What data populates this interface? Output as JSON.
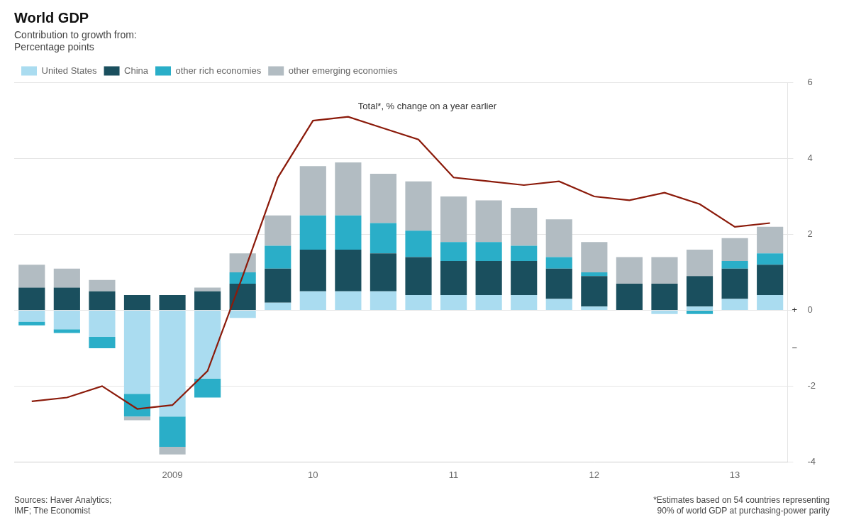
{
  "chart_data": {
    "type": "bar",
    "title": "World GDP",
    "subtitle": [
      "Contribution to growth from:",
      "Percentage points"
    ],
    "categories": [
      null,
      null,
      null,
      null,
      "2009",
      null,
      null,
      null,
      "10",
      null,
      null,
      null,
      "11",
      null,
      null,
      null,
      "12",
      null,
      null,
      null,
      "13",
      null
    ],
    "series": [
      {
        "name": "United States",
        "color": "#aadcf0",
        "values": [
          -0.3,
          -0.5,
          -0.7,
          -2.2,
          -2.8,
          -1.8,
          -0.2,
          0.2,
          0.5,
          0.5,
          0.5,
          0.4,
          0.4,
          0.4,
          0.4,
          0.3,
          0.1,
          0.0,
          -0.1,
          0.1,
          0.3,
          0.4
        ]
      },
      {
        "name": "China",
        "color": "#1a4f5e",
        "values": [
          0.6,
          0.6,
          0.5,
          0.4,
          0.4,
          0.5,
          0.7,
          0.9,
          1.1,
          1.1,
          1.0,
          1.0,
          0.9,
          0.9,
          0.9,
          0.8,
          0.8,
          0.7,
          0.7,
          0.8,
          0.8,
          0.8
        ]
      },
      {
        "name": "other rich economies",
        "color": "#2aaec8",
        "values": [
          -0.1,
          -0.1,
          -0.3,
          -0.6,
          -0.8,
          -0.5,
          0.3,
          0.6,
          0.9,
          0.9,
          0.8,
          0.7,
          0.5,
          0.5,
          0.4,
          0.3,
          0.1,
          0.0,
          0.0,
          -0.1,
          0.2,
          0.3
        ]
      },
      {
        "name": "other emerging economies",
        "color": "#b2bcc2",
        "values": [
          0.6,
          0.5,
          0.3,
          -0.1,
          -0.2,
          0.1,
          0.5,
          0.8,
          1.3,
          1.4,
          1.3,
          1.3,
          1.2,
          1.1,
          1.0,
          1.0,
          0.8,
          0.7,
          0.7,
          0.7,
          0.6,
          0.7
        ]
      },
      {
        "name": "Total*, % change on a year earlier",
        "type": "line",
        "color": "#8b1a0a",
        "values": [
          -2.4,
          -2.3,
          -2.0,
          -2.6,
          -2.5,
          -1.6,
          0.9,
          3.5,
          5.0,
          5.1,
          4.8,
          4.5,
          3.5,
          3.4,
          3.3,
          3.4,
          3.0,
          2.9,
          3.1,
          2.8,
          2.2,
          2.3
        ]
      }
    ],
    "stacked": true,
    "ylim": [
      -4,
      6
    ],
    "yticks": [
      -4,
      -2,
      0,
      2,
      4,
      6
    ],
    "grid": true,
    "legend": "upper left",
    "annotations": [
      {
        "text": "+",
        "y": 0
      },
      {
        "text": "−",
        "y": -1
      }
    ],
    "source": "Sources: Haver Analytics;\nIMF; The Economist",
    "footnote": "*Estimates based on 54 countries representing\n90% of world GDP at purchasing-power parity"
  }
}
